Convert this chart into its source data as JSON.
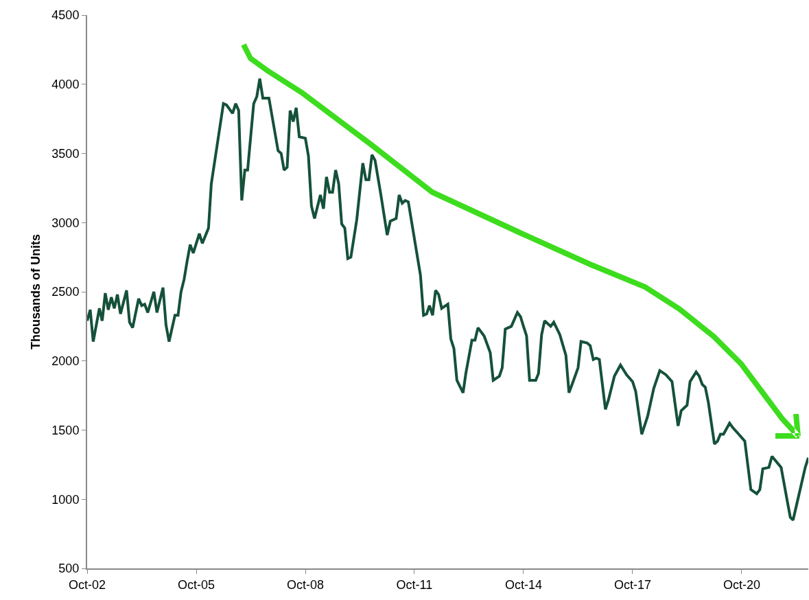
{
  "chart_data": {
    "type": "line",
    "ylabel": "Thousands of Units",
    "x": [
      "2002-10",
      "2002-11",
      "2002-12",
      "2003-02",
      "2003-03",
      "2003-04",
      "2003-05",
      "2003-06",
      "2003-07",
      "2003-08",
      "2003-09",
      "2003-11",
      "2003-12",
      "2004-01",
      "2004-03",
      "2004-04",
      "2004-05",
      "2004-06",
      "2004-08",
      "2004-09",
      "2004-11",
      "2004-12",
      "2005-01",
      "2005-03",
      "2005-04",
      "2005-05",
      "2005-06",
      "2005-07",
      "2005-08",
      "2005-09",
      "2005-11",
      "2005-12",
      "2006-02",
      "2006-03",
      "2006-05",
      "2006-07",
      "2006-08",
      "2006-10",
      "2006-11",
      "2006-12",
      "2007-01",
      "2007-02",
      "2007-03",
      "2007-05",
      "2007-06",
      "2007-07",
      "2007-08",
      "2007-10",
      "2008-01",
      "2008-02",
      "2008-03",
      "2008-04",
      "2008-05",
      "2008-06",
      "2008-07",
      "2008-08",
      "2008-10",
      "2008-11",
      "2008-12",
      "2009-01",
      "2009-03",
      "2009-04",
      "2009-05",
      "2009-06",
      "2009-07",
      "2009-08",
      "2009-09",
      "2009-10",
      "2009-11",
      "2009-12",
      "2010-01",
      "2010-03",
      "2010-05",
      "2010-06",
      "2010-07",
      "2010-08",
      "2010-09",
      "2010-11",
      "2011-01",
      "2011-02",
      "2011-04",
      "2011-05",
      "2011-06",
      "2011-07",
      "2011-08",
      "2011-12",
      "2012-01",
      "2012-02",
      "2012-03",
      "2012-04",
      "2012-05",
      "2012-06",
      "2012-07",
      "2012-09",
      "2012-10",
      "2012-11",
      "2012-12",
      "2013-02",
      "2013-03",
      "2013-05",
      "2013-06",
      "2013-07",
      "2013-09",
      "2013-11",
      "2013-12",
      "2014-02",
      "2014-03",
      "2014-04",
      "2014-06",
      "2014-08",
      "2014-09",
      "2014-10",
      "2014-11",
      "2014-12",
      "2015-02",
      "2015-03",
      "2015-04",
      "2015-05",
      "2015-07",
      "2015-08",
      "2015-10",
      "2015-12",
      "2016-01",
      "2016-02",
      "2016-04",
      "2016-05",
      "2016-07",
      "2016-08",
      "2016-09",
      "2016-10",
      "2016-11",
      "2017-01",
      "2017-02",
      "2017-04",
      "2017-06",
      "2017-08",
      "2017-10",
      "2017-11",
      "2018-01",
      "2018-03",
      "2018-05",
      "2018-07",
      "2018-09",
      "2018-11",
      "2019-01",
      "2019-02",
      "2019-04",
      "2019-05",
      "2019-07",
      "2019-08",
      "2019-09",
      "2019-10",
      "2019-11",
      "2020-01",
      "2020-02",
      "2020-03",
      "2020-04",
      "2020-06",
      "2020-07",
      "2020-09",
      "2020-11",
      "2021-01",
      "2021-03",
      "2021-04",
      "2021-05",
      "2021-07",
      "2021-08",
      "2021-11",
      "2022-01",
      "2022-02",
      "2022-03",
      "2022-05",
      "2022-07",
      "2022-08"
    ],
    "series": [
      {
        "color": "#15513a",
        "values": [
          2290,
          2370,
          2140,
          2380,
          2290,
          2490,
          2370,
          2460,
          2380,
          2480,
          2340,
          2510,
          2280,
          2240,
          2450,
          2400,
          2410,
          2350,
          2500,
          2350,
          2530,
          2260,
          2140,
          2330,
          2330,
          2500,
          2590,
          2720,
          2840,
          2780,
          2920,
          2850,
          2960,
          3280,
          3570,
          3860,
          3850,
          3790,
          3860,
          3810,
          3160,
          3380,
          3380,
          3860,
          3910,
          4040,
          3900,
          3900,
          3520,
          3500,
          3380,
          3400,
          3810,
          3730,
          3830,
          3620,
          3610,
          3480,
          3120,
          3030,
          3200,
          3100,
          3330,
          3220,
          3220,
          3380,
          3280,
          2990,
          2960,
          2740,
          2750,
          3020,
          3430,
          3310,
          3310,
          3490,
          3450,
          3190,
          2910,
          3010,
          3030,
          3200,
          3140,
          3160,
          3150,
          2620,
          2330,
          2340,
          2400,
          2330,
          2510,
          2480,
          2380,
          2410,
          2160,
          2090,
          1860,
          1770,
          1910,
          2150,
          2150,
          2240,
          2180,
          2060,
          1860,
          1890,
          1950,
          2230,
          2250,
          2350,
          2320,
          2250,
          2180,
          1860,
          1860,
          1910,
          2190,
          2290,
          2250,
          2280,
          2190,
          2040,
          1770,
          1830,
          1950,
          2140,
          2130,
          2110,
          2010,
          2020,
          2010,
          1650,
          1720,
          1890,
          1970,
          1900,
          1850,
          1780,
          1470,
          1600,
          1800,
          1930,
          1900,
          1850,
          1530,
          1640,
          1680,
          1850,
          1920,
          1890,
          1830,
          1810,
          1700,
          1400,
          1420,
          1470,
          1470,
          1550,
          1520,
          1470,
          1420,
          1070,
          1040,
          1070,
          1220,
          1230,
          1310,
          1230,
          990,
          870,
          850,
          1040,
          1230,
          1300
        ]
      }
    ],
    "xlim": [
      "2002-10",
      "2022-08"
    ],
    "xticks": [
      {
        "value": "2002-10",
        "label": "Oct-02"
      },
      {
        "value": "2005-10",
        "label": "Oct-05"
      },
      {
        "value": "2008-10",
        "label": "Oct-08"
      },
      {
        "value": "2011-10",
        "label": "Oct-11"
      },
      {
        "value": "2014-10",
        "label": "Oct-14"
      },
      {
        "value": "2017-10",
        "label": "Oct-17"
      },
      {
        "value": "2020-10",
        "label": "Oct-20"
      }
    ],
    "ylim": [
      500,
      4500
    ],
    "yticks": [
      500,
      1000,
      1500,
      2000,
      2500,
      3000,
      3500,
      4000,
      4500
    ],
    "line_style": "solid"
  }
}
